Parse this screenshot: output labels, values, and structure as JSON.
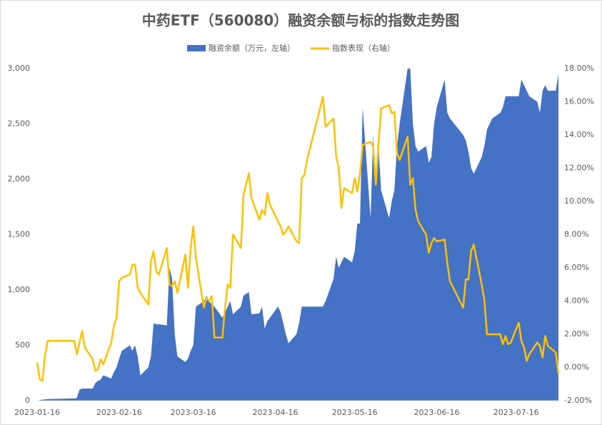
{
  "chart_data": {
    "type": "combo",
    "title": "中药ETF（560080）融资余额与标的指数走势图",
    "legend": "top",
    "grid": false,
    "x": [
      "2023-01-16",
      "2023-01-17",
      "2023-01-18",
      "2023-01-19",
      "2023-01-20",
      "2023-01-30",
      "2023-01-31",
      "2023-02-01",
      "2023-02-02",
      "2023-02-03",
      "2023-02-06",
      "2023-02-07",
      "2023-02-08",
      "2023-02-09",
      "2023-02-10",
      "2023-02-13",
      "2023-02-14",
      "2023-02-15",
      "2023-02-16",
      "2023-02-17",
      "2023-02-20",
      "2023-02-21",
      "2023-02-22",
      "2023-02-23",
      "2023-02-24",
      "2023-02-27",
      "2023-02-28",
      "2023-03-01",
      "2023-03-02",
      "2023-03-03",
      "2023-03-06",
      "2023-03-07",
      "2023-03-08",
      "2023-03-09",
      "2023-03-10",
      "2023-03-13",
      "2023-03-14",
      "2023-03-15",
      "2023-03-16",
      "2023-03-17",
      "2023-03-20",
      "2023-03-21",
      "2023-03-22",
      "2023-03-23",
      "2023-03-24",
      "2023-03-27",
      "2023-03-28",
      "2023-03-29",
      "2023-03-30",
      "2023-03-31",
      "2023-04-03",
      "2023-04-04",
      "2023-04-06",
      "2023-04-07",
      "2023-04-10",
      "2023-04-11",
      "2023-04-12",
      "2023-04-13",
      "2023-04-14",
      "2023-04-17",
      "2023-04-18",
      "2023-04-19",
      "2023-04-20",
      "2023-04-21",
      "2023-04-24",
      "2023-04-25",
      "2023-04-26",
      "2023-04-27",
      "2023-04-28",
      "2023-05-04",
      "2023-05-05",
      "2023-05-08",
      "2023-05-09",
      "2023-05-10",
      "2023-05-11",
      "2023-05-12",
      "2023-05-15",
      "2023-05-16",
      "2023-05-17",
      "2023-05-18",
      "2023-05-19",
      "2023-05-22",
      "2023-05-23",
      "2023-05-24",
      "2023-05-25",
      "2023-05-26",
      "2023-05-29",
      "2023-05-30",
      "2023-05-31",
      "2023-06-01",
      "2023-06-02",
      "2023-06-05",
      "2023-06-06",
      "2023-06-07",
      "2023-06-08",
      "2023-06-09",
      "2023-06-12",
      "2023-06-13",
      "2023-06-14",
      "2023-06-15",
      "2023-06-16",
      "2023-06-19",
      "2023-06-20",
      "2023-06-21",
      "2023-06-26",
      "2023-06-27",
      "2023-06-28",
      "2023-06-29",
      "2023-06-30",
      "2023-07-03",
      "2023-07-04",
      "2023-07-05",
      "2023-07-06",
      "2023-07-07",
      "2023-07-10",
      "2023-07-11",
      "2023-07-12",
      "2023-07-13",
      "2023-07-14",
      "2023-07-17",
      "2023-07-18",
      "2023-07-19",
      "2023-07-20",
      "2023-07-21",
      "2023-07-24",
      "2023-07-25",
      "2023-07-26",
      "2023-07-27",
      "2023-07-28",
      "2023-07-31",
      "2023-08-01"
    ],
    "series": [
      {
        "name": "融资余额（万元，左轴）",
        "type": "area",
        "color": "#4472c4",
        "axis": "y",
        "values": [
          0,
          5,
          10,
          12,
          15,
          20,
          25,
          100,
          110,
          110,
          110,
          160,
          180,
          190,
          230,
          200,
          260,
          300,
          380,
          450,
          500,
          450,
          500,
          400,
          230,
          300,
          400,
          700,
          690,
          690,
          680,
          1200,
          1100,
          600,
          400,
          350,
          380,
          450,
          500,
          850,
          900,
          950,
          900,
          870,
          850,
          750,
          800,
          850,
          900,
          780,
          850,
          950,
          980,
          780,
          790,
          850,
          650,
          720,
          750,
          850,
          800,
          700,
          600,
          520,
          600,
          700,
          850,
          850,
          850,
          850,
          900,
          1100,
          1300,
          1200,
          1250,
          1300,
          1250,
          1350,
          1600,
          1600,
          2650,
          1650,
          2400,
          2000,
          2300,
          1900,
          1650,
          1800,
          1900,
          2300,
          2500,
          3000,
          3000,
          2500,
          2300,
          2250,
          2300,
          2150,
          2200,
          2500,
          2650,
          2900,
          2600,
          2550,
          2400,
          2350,
          2250,
          2100,
          2050,
          2200,
          2300,
          2450,
          2500,
          2550,
          2600,
          2650,
          2750,
          2750,
          2750,
          2750,
          2900,
          2850,
          2800,
          2750,
          2700,
          2600,
          2800,
          2850,
          2800,
          2800,
          2950
        ]
      },
      {
        "name": "指数表现（右轴）",
        "type": "line",
        "color": "#ffc000",
        "axis": "y2",
        "values": [
          0.3,
          -0.7,
          -0.8,
          0.8,
          1.6,
          1.6,
          0.8,
          1.5,
          2.2,
          1.2,
          0.5,
          -0.2,
          -0.1,
          0.5,
          0.2,
          1.5,
          2.5,
          3.0,
          5.2,
          5.4,
          5.6,
          6.2,
          6.2,
          4.8,
          4.5,
          3.8,
          6.4,
          7.0,
          5.8,
          5.6,
          7.2,
          5.0,
          4.9,
          5.2,
          4.5,
          6.8,
          4.8,
          7.2,
          8.5,
          6.6,
          3.6,
          4.2,
          4.0,
          4.3,
          1.8,
          1.8,
          3.6,
          5.0,
          4.8,
          8.0,
          7.2,
          10.4,
          11.7,
          10.2,
          8.9,
          9.5,
          9.2,
          10.5,
          9.8,
          8.8,
          8.5,
          8.0,
          8.2,
          8.5,
          7.6,
          7.5,
          11.4,
          11.6,
          12.5,
          16.3,
          14.5,
          15.0,
          12.7,
          12.0,
          9.6,
          10.8,
          10.5,
          11.4,
          10.6,
          11.7,
          13.4,
          13.6,
          13.3,
          11.0,
          13.5,
          15.6,
          15.8,
          15.3,
          15.4,
          12.9,
          12.5,
          13.9,
          11.0,
          11.4,
          9.5,
          8.8,
          8.0,
          6.9,
          7.5,
          7.8,
          7.6,
          7.7,
          6.3,
          5.2,
          3.6,
          5.3,
          5.3,
          7.0,
          7.4,
          5.0,
          4.1,
          2.0,
          2.0,
          2.0,
          2.0,
          1.4,
          1.9,
          1.4,
          1.5,
          2.7,
          1.6,
          1.2,
          0.4,
          0.8,
          1.5,
          1.3,
          0.6,
          1.9,
          1.3,
          0.9,
          -0.4
        ]
      }
    ],
    "xlim": [
      "2023-01-16",
      "2023-08-01"
    ],
    "xticks": [
      "2023-01-16",
      "2023-02-16",
      "2023-03-16",
      "2023-04-16",
      "2023-05-16",
      "2023-06-16",
      "2023-07-16"
    ],
    "ylim": [
      0,
      3000
    ],
    "yticks": [
      0,
      500,
      {
        "value": 1000,
        "label": "1,000"
      },
      {
        "value": 1500,
        "label": "1,500"
      },
      {
        "value": 2000,
        "label": "2,000"
      },
      {
        "value": 2500,
        "label": "2,500"
      },
      {
        "value": 3000,
        "label": "3,000"
      }
    ],
    "y2lim": [
      -2,
      18
    ],
    "y2ticks": [
      {
        "value": -2,
        "label": "-2.00%"
      },
      {
        "value": 0,
        "label": "0.00%"
      },
      {
        "value": 2,
        "label": "2.00%"
      },
      {
        "value": 4,
        "label": "4.00%"
      },
      {
        "value": 6,
        "label": "6.00%"
      },
      {
        "value": 8,
        "label": "8.00%"
      },
      {
        "value": 10,
        "label": "10.00%"
      },
      {
        "value": 12,
        "label": "12.00%"
      },
      {
        "value": 14,
        "label": "14.00%"
      },
      {
        "value": 16,
        "label": "16.00%"
      },
      {
        "value": 18,
        "label": "18.00%"
      }
    ]
  }
}
